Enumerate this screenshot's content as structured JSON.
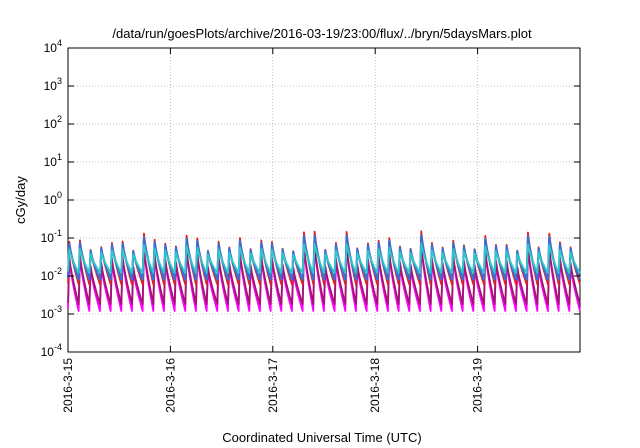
{
  "chart_data": {
    "type": "line",
    "title": "/data/run/goesPlots/archive/2016-03-19/23:00/flux/../bryn/5daysMars.plot",
    "xlabel": "Coordinated Universal Time (UTC)",
    "ylabel": "cGy/day",
    "yscale": "log",
    "ylim_exponents": [
      -4,
      4
    ],
    "ytick_exponents": [
      -4,
      -3,
      -2,
      -1,
      0,
      1,
      2,
      3,
      4
    ],
    "xlim_days": [
      0,
      5
    ],
    "xticks": [
      {
        "label": "2016-3-15",
        "day": 0
      },
      {
        "label": "2016-3-16",
        "day": 1
      },
      {
        "label": "2016-3-17",
        "day": 2
      },
      {
        "label": "2016-3-18",
        "day": 3
      },
      {
        "label": "2016-3-19",
        "day": 4
      }
    ],
    "grid": true,
    "legend": "none",
    "pattern": {
      "cycles": 48,
      "shape": "sawtooth — sharp rise followed by exponential-like decay",
      "description": "Multiple overlapping dose-rate traces oscillating between roughly 1e-3 and 1e-1 cGy/day"
    },
    "series": [
      {
        "color": "#ff00ff",
        "peak": 0.028,
        "trough": 0.0012
      },
      {
        "color": "#a0166e",
        "peak": 0.032,
        "trough": 0.0018
      },
      {
        "color": "#e8200e",
        "peak": 0.08,
        "trough": 0.006
      },
      {
        "color": "#3b6fd8",
        "peak": 0.07,
        "trough": 0.008
      },
      {
        "color": "#2ec8c8",
        "peak": 0.05,
        "trough": 0.012
      }
    ]
  }
}
